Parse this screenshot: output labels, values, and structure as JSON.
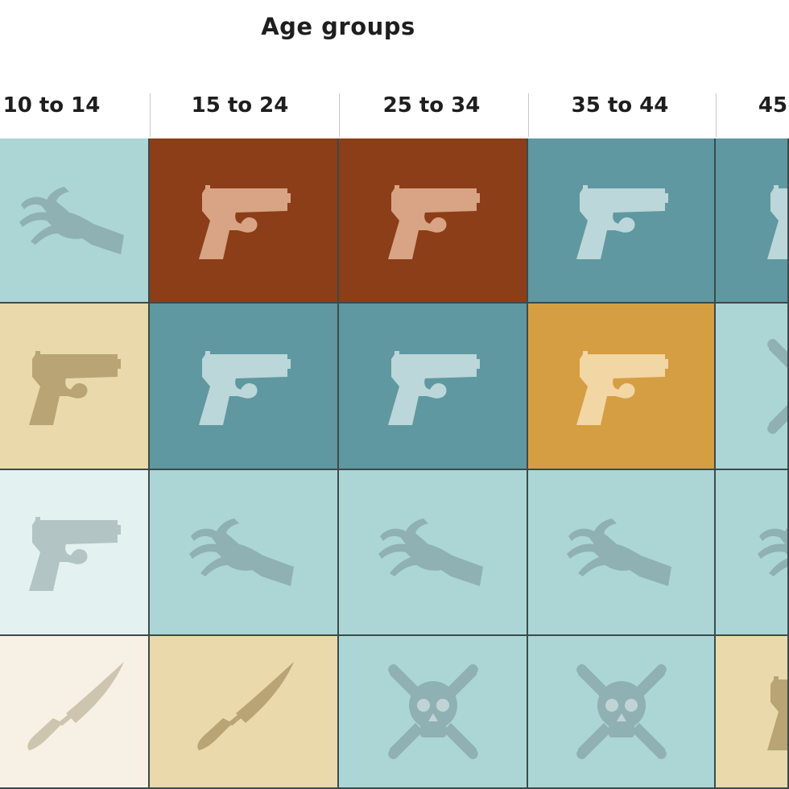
{
  "title": "Age groups",
  "columns": [
    "10 to 14",
    "15 to 24",
    "25 to 34",
    "35 to 44",
    "45"
  ],
  "grid": [
    [
      {
        "icon": "zombie-hand-icon",
        "bg": "#acd6d6",
        "fg": "#8fb1b3"
      },
      {
        "icon": "gun-icon",
        "bg": "#8b3e17",
        "fg": "#d9a485"
      },
      {
        "icon": "gun-icon",
        "bg": "#8b3e17",
        "fg": "#d9a485"
      },
      {
        "icon": "gun-icon",
        "bg": "#5f98a0",
        "fg": "#bcd7d9"
      },
      {
        "icon": "gun-icon",
        "bg": "#5f98a0",
        "fg": "#bcd7d9"
      }
    ],
    [
      {
        "icon": "gun-icon",
        "bg": "#ead9ab",
        "fg": "#b8a474"
      },
      {
        "icon": "gun-icon",
        "bg": "#5f98a0",
        "fg": "#bcd7d9"
      },
      {
        "icon": "gun-icon",
        "bg": "#5f98a0",
        "fg": "#bcd7d9"
      },
      {
        "icon": "gun-icon",
        "bg": "#d59e43",
        "fg": "#f2d6a4"
      },
      {
        "icon": "skull-icon",
        "bg": "#acd6d6",
        "fg": "#8fb1b3"
      }
    ],
    [
      {
        "icon": "gun-icon",
        "bg": "#e4f1f1",
        "fg": "#b3c4c4"
      },
      {
        "icon": "zombie-hand-icon",
        "bg": "#acd6d6",
        "fg": "#8fb1b3"
      },
      {
        "icon": "zombie-hand-icon",
        "bg": "#acd6d6",
        "fg": "#8fb1b3"
      },
      {
        "icon": "zombie-hand-icon",
        "bg": "#acd6d6",
        "fg": "#8fb1b3"
      },
      {
        "icon": "zombie-hand-icon",
        "bg": "#acd6d6",
        "fg": "#8fb1b3"
      }
    ],
    [
      {
        "icon": "knife-icon",
        "bg": "#f6f1e4",
        "fg": "#cdc5b0"
      },
      {
        "icon": "knife-icon",
        "bg": "#ead9ab",
        "fg": "#b8a474"
      },
      {
        "icon": "skull-icon",
        "bg": "#acd6d6",
        "fg": "#8fb1b3"
      },
      {
        "icon": "skull-icon",
        "bg": "#acd6d6",
        "fg": "#8fb1b3"
      },
      {
        "icon": "gun-icon",
        "bg": "#ead9ab",
        "fg": "#b8a474"
      }
    ]
  ]
}
